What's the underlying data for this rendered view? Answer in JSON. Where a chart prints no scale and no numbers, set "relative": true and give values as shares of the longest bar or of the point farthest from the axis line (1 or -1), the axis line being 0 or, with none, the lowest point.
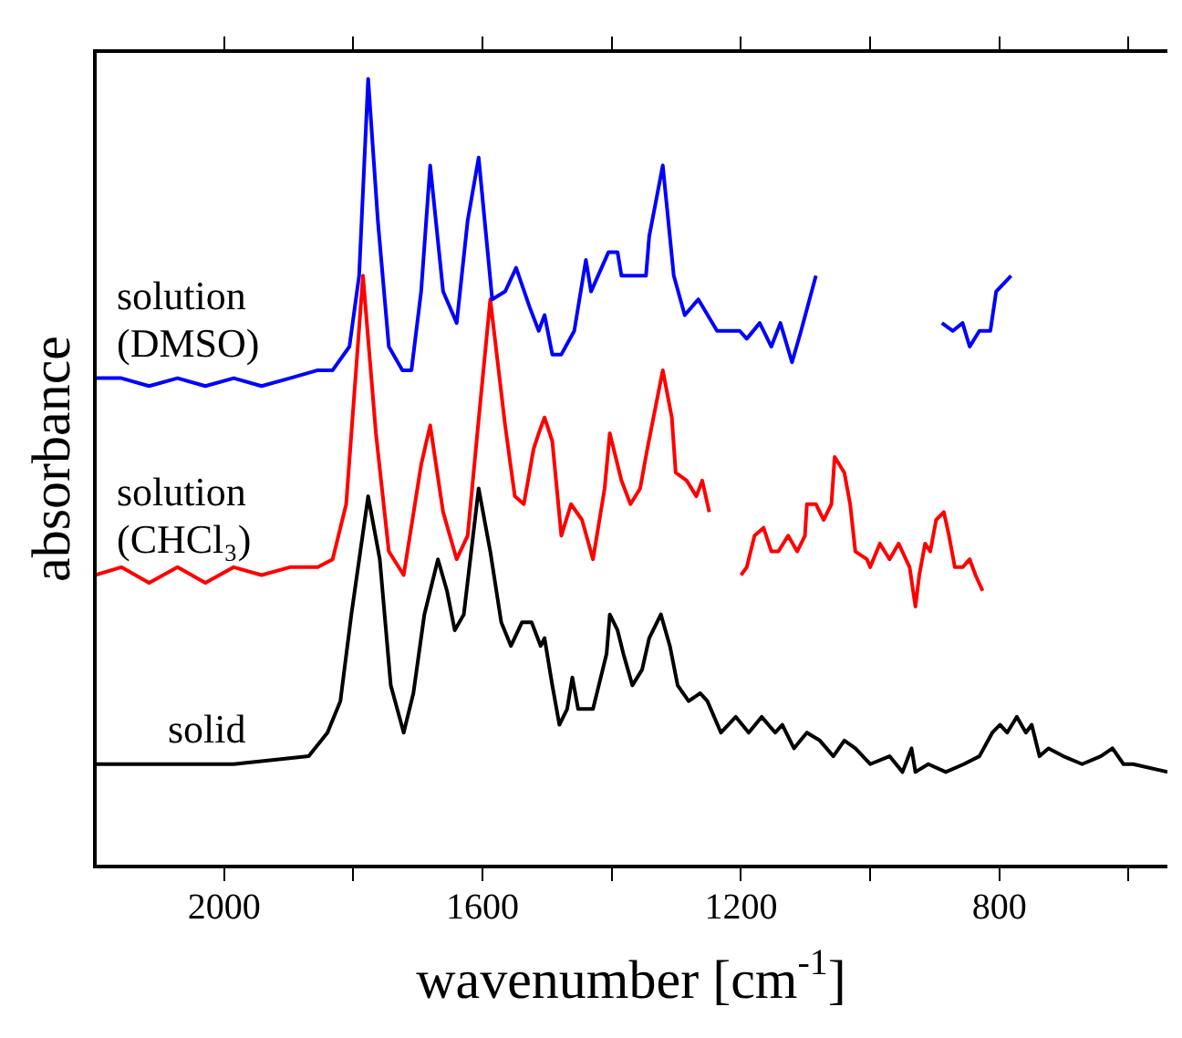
{
  "chart_data": {
    "type": "line",
    "relative": true,
    "xlabel": "wavenumber [cm$^{-1}$]",
    "ylabel": "absorbance",
    "xlim": [
      2200,
      540
    ],
    "xticks": [
      2000,
      {
        "value": 1800,
        "label": null
      },
      1600,
      {
        "value": 1400,
        "label": null
      },
      1200,
      {
        "value": 1000,
        "label": null
      },
      800,
      {
        "value": 600,
        "label": null
      }
    ],
    "grid": false,
    "legend": false,
    "marker": "none",
    "line_style": "solid",
    "series": [
      {
        "name": "solution (DMSO)",
        "color": "#0000ff",
        "x": [
          2200,
          2159,
          2116,
          2072,
          2029,
          1985,
          1942,
          1898,
          1855,
          1832,
          1806,
          1791,
          1777,
          1762,
          1745,
          1724,
          1710,
          1695,
          1681,
          1661,
          1640,
          1623,
          1606,
          1585,
          1565,
          1548,
          1527,
          1513,
          1504,
          1492,
          1478,
          1458,
          1440,
          1432,
          1405,
          1391,
          1385,
          1362,
          1347,
          1342,
          1321,
          1304,
          1287,
          1266,
          1237,
          1226,
          1202,
          1191,
          1171,
          1153,
          1139,
          1121,
          1107,
          1084,
          1000,
          889,
          872,
          857,
          846,
          831,
          814,
          805,
          782
        ],
        "values": [
          0.62,
          0.62,
          0.61,
          0.62,
          0.61,
          0.62,
          0.61,
          0.62,
          0.63,
          0.63,
          0.66,
          0.75,
          1,
          0.82,
          0.66,
          0.63,
          0.63,
          0.73,
          0.89,
          0.73,
          0.69,
          0.82,
          0.9,
          0.72,
          0.73,
          0.76,
          0.71,
          0.68,
          0.7,
          0.65,
          0.65,
          0.68,
          0.77,
          0.73,
          0.78,
          0.78,
          0.75,
          0.75,
          0.75,
          0.8,
          0.89,
          0.75,
          0.7,
          0.72,
          0.68,
          0.68,
          0.68,
          0.67,
          0.69,
          0.66,
          0.69,
          0.64,
          0.68,
          0.75,
          null,
          0.69,
          0.68,
          0.69,
          0.66,
          0.68,
          0.68,
          0.73,
          0.75
        ]
      },
      {
        "name": "solution (CHCl₃)",
        "color": "#ff0000",
        "x": [
          2200,
          2159,
          2116,
          2072,
          2029,
          1985,
          1942,
          1898,
          1855,
          1832,
          1811,
          1785,
          1765,
          1745,
          1722,
          1695,
          1681,
          1661,
          1640,
          1623,
          1608,
          1588,
          1565,
          1550,
          1536,
          1521,
          1513,
          1504,
          1492,
          1478,
          1463,
          1446,
          1429,
          1411,
          1403,
          1385,
          1371,
          1356,
          1345,
          1321,
          1307,
          1301,
          1284,
          1269,
          1260,
          1249,
          1220,
          1200,
          1191,
          1179,
          1165,
          1153,
          1142,
          1127,
          1113,
          1101,
          1098,
          1084,
          1072,
          1060,
          1055,
          1040,
          1031,
          1023,
          1005,
          1000,
          985,
          970,
          956,
          939,
          930,
          924,
          915,
          907,
          898,
          886,
          878,
          869,
          857,
          846,
          837,
          826
        ],
        "values": [
          0.37,
          0.38,
          0.36,
          0.38,
          0.36,
          0.38,
          0.37,
          0.38,
          0.38,
          0.39,
          0.46,
          0.75,
          0.55,
          0.4,
          0.37,
          0.51,
          0.56,
          0.45,
          0.39,
          0.42,
          0.55,
          0.72,
          0.56,
          0.47,
          0.46,
          0.53,
          0.55,
          0.57,
          0.54,
          0.42,
          0.46,
          0.44,
          0.39,
          0.48,
          0.55,
          0.49,
          0.46,
          0.48,
          0.53,
          0.63,
          0.57,
          0.5,
          0.49,
          0.47,
          0.49,
          0.45,
          null,
          0.37,
          0.38,
          0.42,
          0.43,
          0.4,
          0.4,
          0.42,
          0.4,
          0.42,
          0.46,
          0.46,
          0.44,
          0.46,
          0.52,
          0.5,
          0.46,
          0.4,
          0.39,
          0.38,
          0.41,
          0.39,
          0.41,
          0.38,
          0.33,
          0.37,
          0.41,
          0.4,
          0.44,
          0.45,
          0.42,
          0.38,
          0.38,
          0.39,
          0.37,
          0.35
        ]
      },
      {
        "name": "solid",
        "color": "#000000",
        "x": [
          2200,
          1985,
          1869,
          1840,
          1820,
          1803,
          1777,
          1759,
          1742,
          1722,
          1707,
          1690,
          1669,
          1655,
          1643,
          1629,
          1606,
          1588,
          1571,
          1556,
          1539,
          1524,
          1510,
          1504,
          1492,
          1481,
          1469,
          1461,
          1452,
          1429,
          1408,
          1403,
          1391,
          1382,
          1368,
          1353,
          1342,
          1324,
          1310,
          1298,
          1281,
          1263,
          1252,
          1231,
          1208,
          1188,
          1168,
          1147,
          1136,
          1118,
          1098,
          1078,
          1057,
          1040,
          1023,
          1000,
          970,
          950,
          936,
          930,
          910,
          883,
          855,
          831,
          811,
          799,
          788,
          773,
          759,
          750,
          738,
          724,
          701,
          672,
          643,
          625,
          608,
          593,
          540
        ],
        "values": [
          0.13,
          0.13,
          0.14,
          0.17,
          0.21,
          0.32,
          0.47,
          0.39,
          0.23,
          0.17,
          0.22,
          0.32,
          0.39,
          0.35,
          0.3,
          0.32,
          0.48,
          0.4,
          0.31,
          0.28,
          0.31,
          0.31,
          0.28,
          0.29,
          0.23,
          0.18,
          0.2,
          0.24,
          0.2,
          0.2,
          0.27,
          0.32,
          0.3,
          0.27,
          0.23,
          0.25,
          0.29,
          0.32,
          0.28,
          0.23,
          0.21,
          0.22,
          0.21,
          0.17,
          0.19,
          0.17,
          0.19,
          0.17,
          0.18,
          0.15,
          0.17,
          0.16,
          0.14,
          0.16,
          0.15,
          0.13,
          0.14,
          0.12,
          0.15,
          0.12,
          0.13,
          0.12,
          0.13,
          0.14,
          0.17,
          0.18,
          0.17,
          0.19,
          0.17,
          0.18,
          0.14,
          0.15,
          0.14,
          0.13,
          0.14,
          0.15,
          0.13,
          0.13,
          0.12
        ]
      }
    ]
  }
}
